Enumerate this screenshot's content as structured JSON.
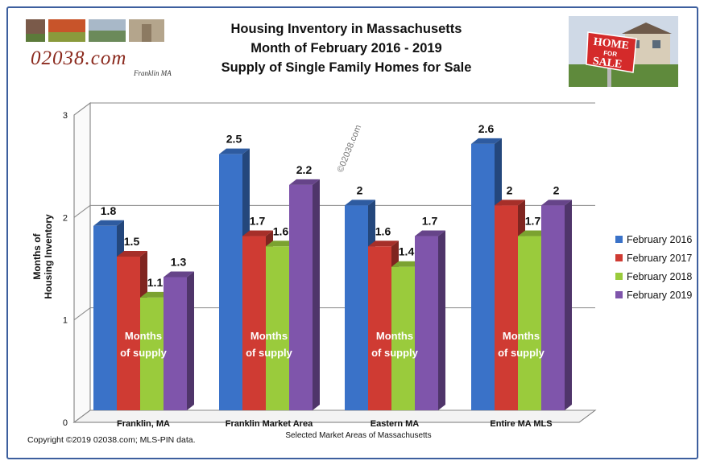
{
  "logo": {
    "brand": "02038.com",
    "tagline": "Franklin MA"
  },
  "title_lines": [
    "Housing Inventory in Massachusetts",
    "Month of February 2016 - 2019",
    "Supply of Single Family Homes for Sale"
  ],
  "sale_sign": {
    "line1": "HOME",
    "line2": "FOR",
    "line3": "SALE"
  },
  "watermark": "©02038.com",
  "copyright": "Copyright  ©2019  02038.com;  MLS-PIN data.",
  "chart_data": {
    "type": "bar",
    "title": "Housing Inventory in Massachusetts Month of February 2016 - 2019 Supply of Single Family Homes for Sale",
    "xlabel": "Selected Market Areas of Massachusetts",
    "ylabel_lines": [
      "Months of",
      "Housing Inventory"
    ],
    "ylim": [
      0,
      3
    ],
    "yticks": [
      "0",
      "1",
      "2",
      "3"
    ],
    "grid": true,
    "legend_position": "right",
    "categories": [
      "Franklin, MA",
      "Franklin Market Area",
      "Eastern MA",
      "Entire MA MLS"
    ],
    "series": [
      {
        "name": "February 2016",
        "color": "#3a72c8",
        "values": [
          1.8,
          2.5,
          2,
          2.6
        ]
      },
      {
        "name": "February 2017",
        "color": "#cf3b33",
        "values": [
          1.5,
          1.7,
          1.6,
          2
        ]
      },
      {
        "name": "February 2018",
        "color": "#9acb3c",
        "values": [
          1.1,
          1.6,
          1.4,
          1.7
        ]
      },
      {
        "name": "February 2019",
        "color": "#7f55ab",
        "values": [
          1.3,
          2.2,
          1.7,
          2
        ]
      }
    ],
    "annotations": [
      "Months",
      "of supply"
    ]
  }
}
